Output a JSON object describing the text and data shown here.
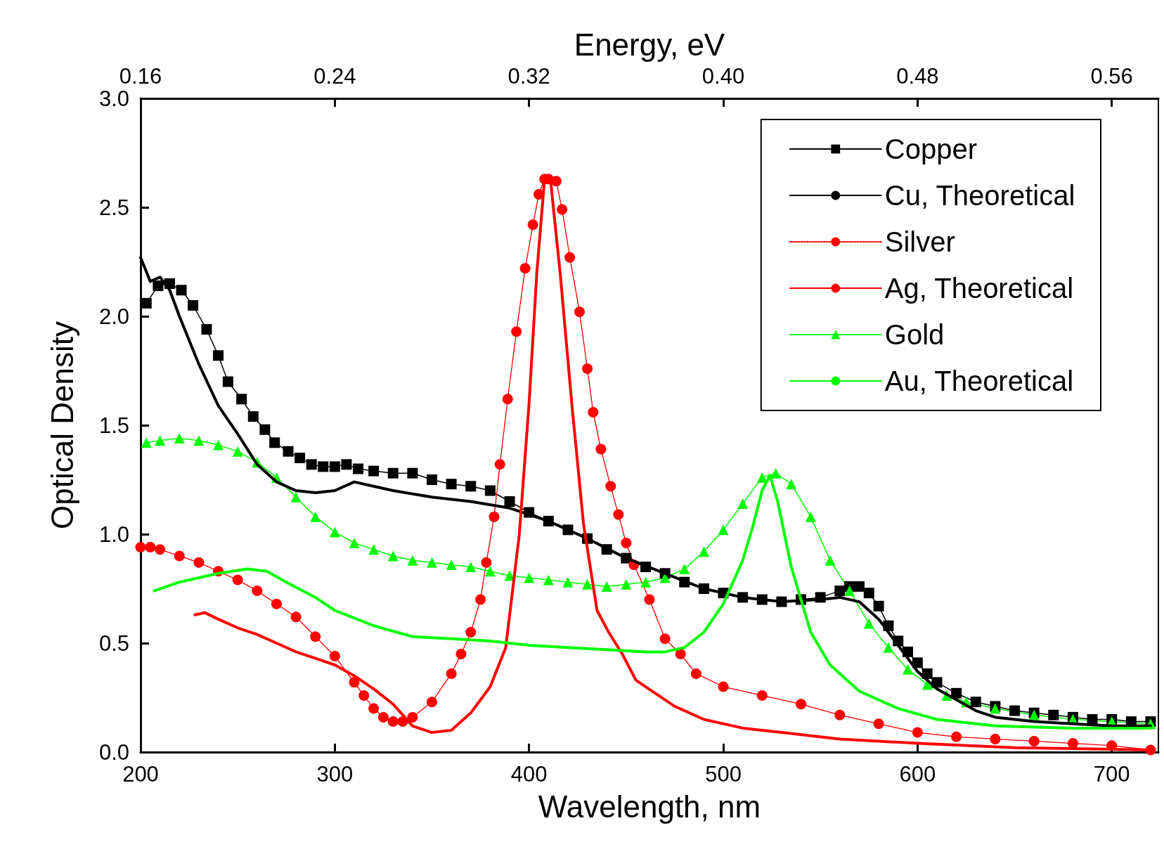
{
  "chart_data": {
    "type": "line",
    "xlabel": "Wavelength, nm",
    "ylabel": "Optical Density",
    "x2label": "Energy, eV",
    "xlim": [
      200,
      724
    ],
    "xticks": [
      200,
      300,
      400,
      500,
      600,
      700
    ],
    "x2lim": [
      0.16,
      0.5792
    ],
    "x2ticks": [
      0.16,
      0.24,
      0.32,
      {
        "value": 0.4,
        "label": "0.40"
      },
      0.48,
      0.56
    ],
    "ylim": [
      0,
      3
    ],
    "yticks": [
      {
        "value": 0,
        "label": "0.0"
      },
      0.5,
      {
        "value": 1,
        "label": "1.0"
      },
      1.5,
      {
        "value": 2,
        "label": "2.0"
      },
      2.5,
      {
        "value": 3,
        "label": "3.0"
      }
    ],
    "grid": false,
    "legend": "top right",
    "series": [
      {
        "name": "Copper",
        "color": "#000000",
        "marker": "square",
        "line_style": "solid",
        "x": [
          203,
          209,
          215,
          221,
          227,
          234,
          240,
          245,
          252,
          258,
          264,
          269,
          276,
          282,
          288,
          294,
          300,
          306,
          312,
          320,
          330,
          340,
          350,
          360,
          370,
          380,
          390,
          400,
          410,
          420,
          430,
          440,
          450,
          460,
          470,
          480,
          490,
          500,
          510,
          520,
          530,
          540,
          550,
          560,
          565,
          570,
          575,
          580,
          585,
          590,
          595,
          600,
          605,
          610,
          620,
          630,
          640,
          650,
          660,
          670,
          680,
          690,
          700,
          710,
          720
        ],
        "values": [
          2.06,
          2.14,
          2.15,
          2.12,
          2.05,
          1.94,
          1.82,
          1.7,
          1.62,
          1.54,
          1.48,
          1.42,
          1.38,
          1.35,
          1.32,
          1.31,
          1.31,
          1.32,
          1.3,
          1.29,
          1.28,
          1.28,
          1.25,
          1.23,
          1.22,
          1.2,
          1.15,
          1.1,
          1.06,
          1.02,
          0.98,
          0.93,
          0.89,
          0.85,
          0.82,
          0.78,
          0.75,
          0.73,
          0.71,
          0.7,
          0.69,
          0.7,
          0.71,
          0.74,
          0.76,
          0.76,
          0.73,
          0.67,
          0.58,
          0.51,
          0.46,
          0.41,
          0.36,
          0.32,
          0.27,
          0.23,
          0.21,
          0.19,
          0.18,
          0.17,
          0.16,
          0.15,
          0.15,
          0.14,
          0.14
        ]
      },
      {
        "name": "Cu, Theoretical",
        "color": "#000000",
        "marker": "none",
        "line_style": "solid",
        "x": [
          200,
          205,
          210,
          215,
          220,
          230,
          240,
          250,
          260,
          270,
          280,
          290,
          300,
          305,
          310,
          315,
          330,
          350,
          370,
          390,
          410,
          430,
          450,
          470,
          490,
          510,
          530,
          550,
          560,
          570,
          580,
          590,
          600,
          610,
          620,
          630,
          640,
          660,
          680,
          700,
          720
        ],
        "values": [
          2.27,
          2.16,
          2.18,
          2.12,
          2.0,
          1.78,
          1.59,
          1.46,
          1.32,
          1.24,
          1.2,
          1.19,
          1.2,
          1.22,
          1.24,
          1.23,
          1.2,
          1.17,
          1.15,
          1.12,
          1.06,
          0.98,
          0.89,
          0.82,
          0.75,
          0.71,
          0.69,
          0.7,
          0.71,
          0.69,
          0.61,
          0.49,
          0.37,
          0.29,
          0.24,
          0.19,
          0.16,
          0.14,
          0.13,
          0.12,
          0.12
        ]
      },
      {
        "name": "Silver",
        "color": "#ff0000",
        "marker": "circle",
        "line_style": "dotted",
        "x": [
          200,
          205,
          210,
          220,
          230,
          240,
          250,
          260,
          270,
          280,
          290,
          300,
          310,
          315,
          320,
          325,
          330,
          335,
          340,
          350,
          360,
          365,
          370,
          375,
          378,
          382,
          385,
          389,
          393.5,
          398,
          402,
          405,
          408,
          410,
          414,
          417,
          421,
          426,
          430,
          433,
          437,
          442,
          446,
          450,
          454,
          462,
          470,
          478,
          486,
          500,
          520,
          540,
          560,
          580,
          600,
          620,
          640,
          660,
          680,
          700,
          720
        ],
        "values": [
          0.94,
          0.94,
          0.93,
          0.9,
          0.87,
          0.83,
          0.79,
          0.74,
          0.68,
          0.62,
          0.53,
          0.44,
          0.32,
          0.26,
          0.2,
          0.16,
          0.14,
          0.14,
          0.16,
          0.23,
          0.36,
          0.45,
          0.55,
          0.7,
          0.87,
          1.08,
          1.32,
          1.62,
          1.93,
          2.22,
          2.42,
          2.56,
          2.63,
          2.63,
          2.62,
          2.49,
          2.27,
          2.02,
          1.76,
          1.56,
          1.39,
          1.22,
          1.09,
          0.96,
          0.86,
          0.7,
          0.52,
          0.45,
          0.36,
          0.3,
          0.26,
          0.22,
          0.17,
          0.13,
          0.09,
          0.07,
          0.06,
          0.05,
          0.04,
          0.03,
          0.01
        ]
      },
      {
        "name": "Ag, Theoretical",
        "color": "#ff0000",
        "marker": "none",
        "line_style": "solid",
        "x": [
          228,
          233,
          240,
          250,
          260,
          270,
          280,
          290,
          300,
          310,
          320,
          330,
          340,
          350,
          360,
          370,
          380,
          388,
          395,
          400,
          404,
          408,
          411,
          416,
          422,
          428,
          435,
          441,
          448,
          455,
          465,
          475,
          490,
          510,
          530,
          560,
          600,
          650,
          720
        ],
        "values": [
          0.63,
          0.64,
          0.61,
          0.57,
          0.54,
          0.5,
          0.46,
          0.43,
          0.4,
          0.35,
          0.29,
          0.22,
          0.12,
          0.09,
          0.1,
          0.18,
          0.3,
          0.48,
          1.0,
          1.6,
          2.2,
          2.63,
          2.63,
          2.2,
          1.6,
          1.05,
          0.65,
          0.55,
          0.45,
          0.33,
          0.27,
          0.21,
          0.15,
          0.11,
          0.09,
          0.06,
          0.04,
          0.02,
          0.01
        ]
      },
      {
        "name": "Gold",
        "color": "#00ff00",
        "marker": "triangle",
        "line_style": "solid",
        "x": [
          203,
          210,
          220,
          230,
          240,
          250,
          260,
          270,
          280,
          290,
          300,
          310,
          320,
          330,
          340,
          350,
          360,
          370,
          380,
          390,
          400,
          410,
          420,
          430,
          440,
          450,
          460,
          470,
          480,
          490,
          500,
          510,
          520,
          527,
          535,
          545,
          555,
          565,
          575,
          585,
          595,
          605,
          615,
          625,
          640,
          660,
          680,
          700,
          720
        ],
        "values": [
          1.42,
          1.43,
          1.44,
          1.43,
          1.41,
          1.38,
          1.33,
          1.26,
          1.17,
          1.08,
          1.01,
          0.96,
          0.93,
          0.9,
          0.88,
          0.87,
          0.86,
          0.85,
          0.83,
          0.81,
          0.8,
          0.79,
          0.78,
          0.77,
          0.76,
          0.77,
          0.78,
          0.8,
          0.84,
          0.92,
          1.02,
          1.14,
          1.26,
          1.28,
          1.23,
          1.08,
          0.88,
          0.74,
          0.59,
          0.48,
          0.38,
          0.31,
          0.26,
          0.23,
          0.2,
          0.17,
          0.15,
          0.14,
          0.13
        ]
      },
      {
        "name": "Au, Theoretical",
        "color": "#00ff00",
        "marker": "none",
        "line_style": "solid",
        "x": [
          207,
          220,
          230,
          240,
          255,
          265,
          275,
          290,
          300,
          320,
          340,
          360,
          380,
          400,
          420,
          440,
          460,
          470,
          480,
          490,
          500,
          510,
          515,
          520,
          524,
          528,
          535,
          545,
          555,
          570,
          590,
          610,
          640,
          680,
          720
        ],
        "values": [
          0.74,
          0.78,
          0.8,
          0.82,
          0.84,
          0.83,
          0.78,
          0.71,
          0.65,
          0.58,
          0.53,
          0.52,
          0.51,
          0.49,
          0.48,
          0.47,
          0.46,
          0.46,
          0.48,
          0.55,
          0.68,
          0.88,
          1.03,
          1.2,
          1.27,
          1.15,
          0.85,
          0.55,
          0.4,
          0.28,
          0.2,
          0.15,
          0.12,
          0.11,
          0.11
        ]
      }
    ]
  }
}
